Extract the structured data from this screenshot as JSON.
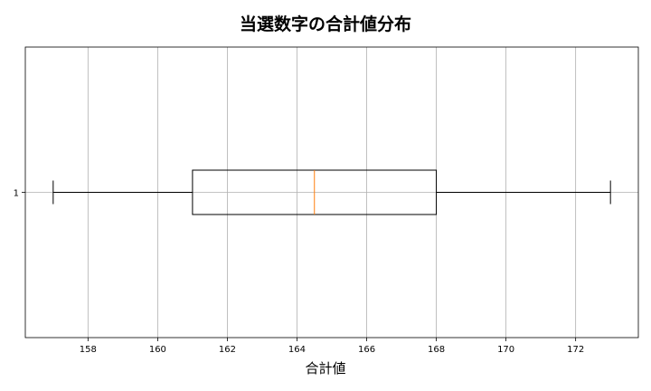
{
  "chart_data": {
    "type": "boxplot",
    "title": "当選数字の合計値分布",
    "xlabel": "合計値",
    "ylabel": "",
    "orientation": "horizontal",
    "categories": [
      "1"
    ],
    "boxes": [
      {
        "label": "1",
        "whisker_low": 157,
        "q1": 161,
        "median": 164.5,
        "q3": 168,
        "whisker_high": 173
      }
    ],
    "xlim": [
      156.2,
      173.8
    ],
    "xticks": [
      158,
      160,
      162,
      164,
      166,
      168,
      170,
      172
    ],
    "grid": true,
    "colors": {
      "box": "#000000",
      "median": "#ff7f0e",
      "grid": "#b0b0b0"
    }
  }
}
